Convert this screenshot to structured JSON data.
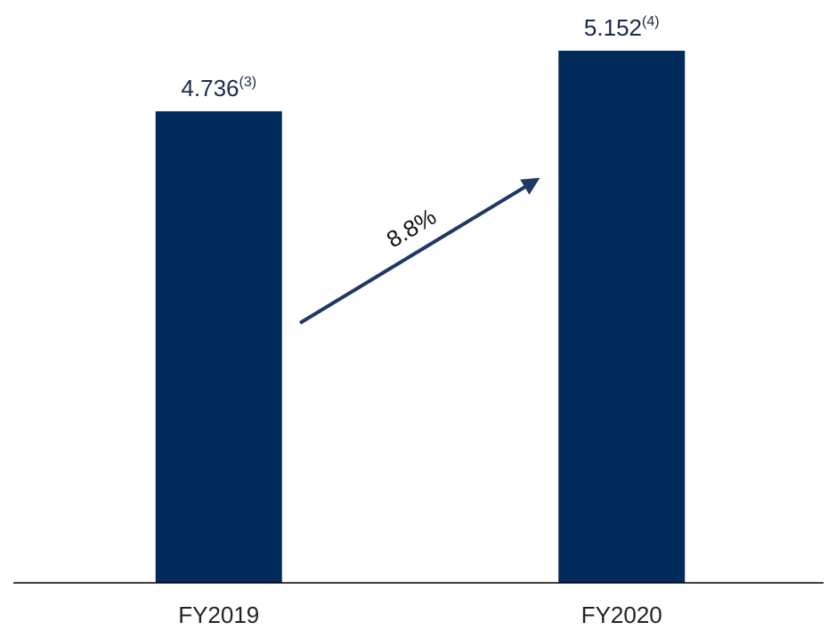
{
  "chart_data": {
    "type": "bar",
    "categories": [
      "FY2019",
      "FY2020"
    ],
    "values": [
      4.736,
      5.152
    ],
    "value_notes": [
      "(3)",
      "(4)"
    ],
    "color": "#002b5c",
    "ylim": [
      1.5,
      5.5
    ],
    "annotations": [
      {
        "text": "8.8%"
      }
    ]
  }
}
